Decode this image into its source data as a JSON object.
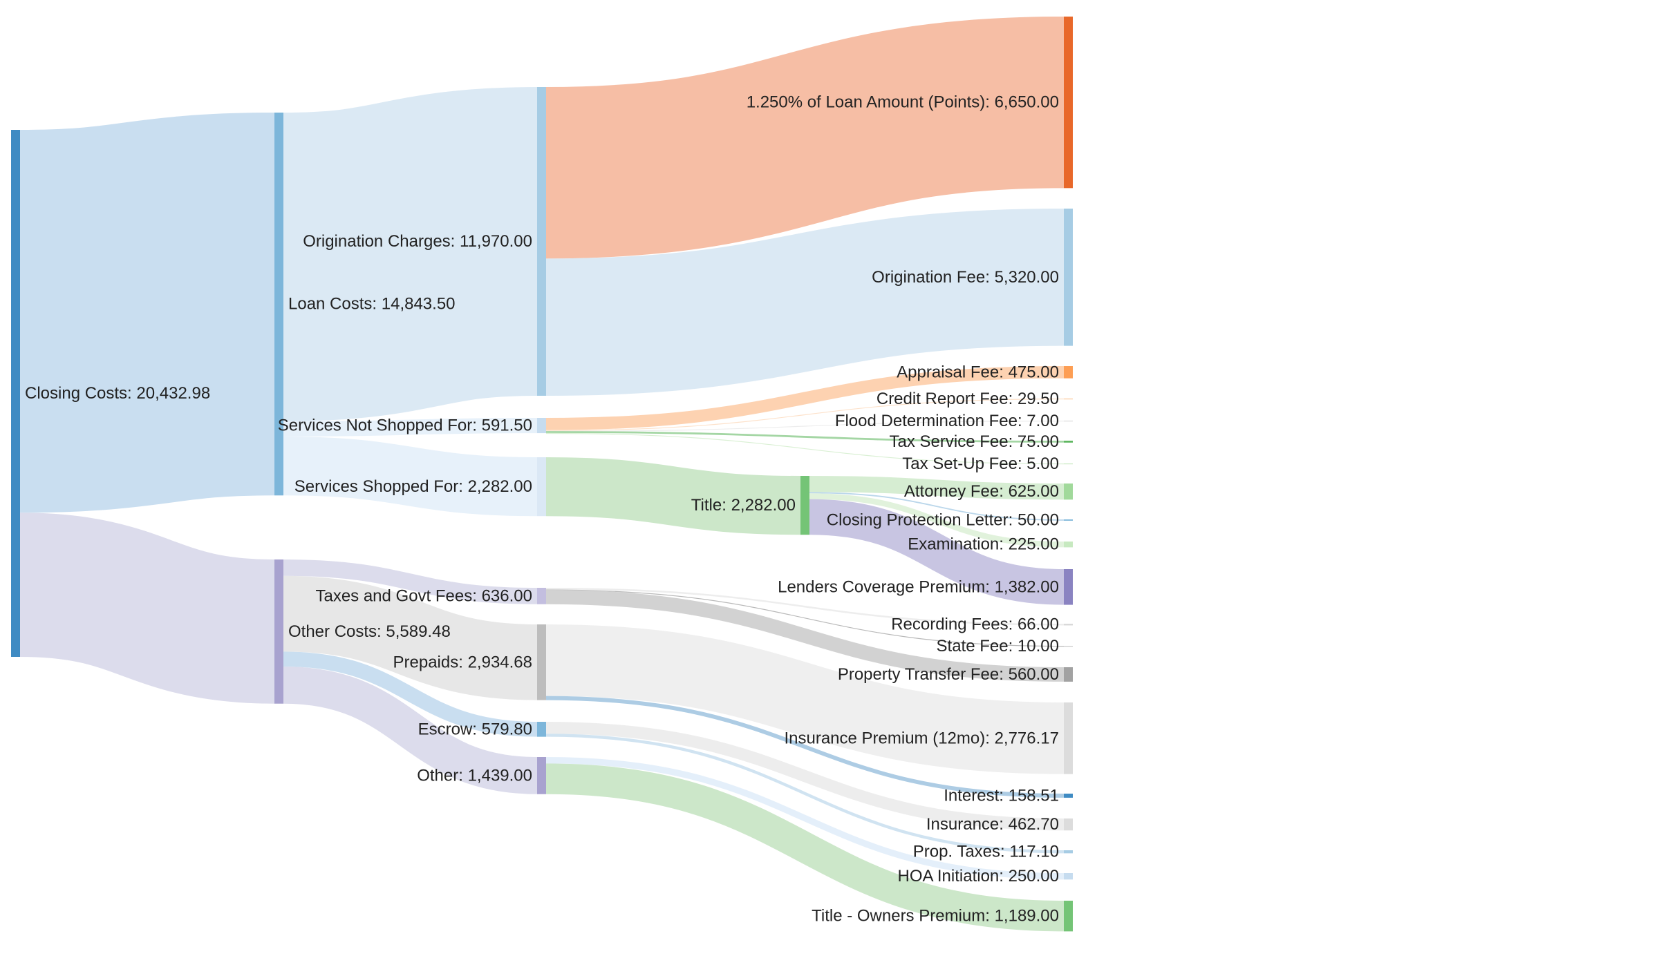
{
  "title": "",
  "colors": {
    "blue_dark": "#3f8bc3",
    "blue_mid": "#7db6da",
    "blue_light": "#a6cce4",
    "blue_pale": "#c6dcef",
    "orange_dark": "#e8682a",
    "orange_light": "#fcc09e",
    "green_dark": "#74c476",
    "green_light": "#a1d99b",
    "green_pale": "#c7e9c0",
    "purple_dark": "#8a83c1",
    "purple_mid": "#a8a2cf",
    "purple_light": "#c3bedf",
    "gray_dark": "#a2a2a2",
    "gray_light": "#d4d4d4",
    "gray_pale": "#e6e6e6"
  },
  "chart_data": {
    "type": "sankey",
    "value_format": "#,##0.00",
    "nodes": [
      {
        "id": "closing",
        "label": "Closing Costs: 20,432.98",
        "value": 20432.98,
        "color": "#3f8bc3"
      },
      {
        "id": "loan",
        "label": "Loan Costs: 14,843.50",
        "value": 14843.5,
        "color": "#7db6da"
      },
      {
        "id": "other_costs",
        "label": "Other Costs: 5,589.48",
        "value": 5589.48,
        "color": "#a8a2cf"
      },
      {
        "id": "origination",
        "label": "Origination Charges: 11,970.00",
        "value": 11970.0,
        "color": "#a6cce4"
      },
      {
        "id": "not_shopped",
        "label": "Services Not Shopped For: 591.50",
        "value": 591.5,
        "color": "#c6dcef"
      },
      {
        "id": "shopped",
        "label": "Services Shopped For: 2,282.00",
        "value": 2282.0,
        "color": "#dbe8f5"
      },
      {
        "id": "taxes",
        "label": "Taxes and Govt Fees: 636.00",
        "value": 636.0,
        "color": "#c3bedf"
      },
      {
        "id": "prepaids",
        "label": "Prepaids: 2,934.68",
        "value": 2934.68,
        "color": "#bdbdbd"
      },
      {
        "id": "escrow",
        "label": "Escrow: 579.80",
        "value": 579.8,
        "color": "#7db6da"
      },
      {
        "id": "other",
        "label": "Other: 1,439.00",
        "value": 1439.0,
        "color": "#a8a2cf"
      },
      {
        "id": "title",
        "label": "Title: 2,282.00",
        "value": 2282.0,
        "color": "#74c476"
      },
      {
        "id": "points",
        "label": "1.250% of Loan Amount (Points): 6,650.00",
        "value": 6650.0,
        "color": "#e8682a"
      },
      {
        "id": "orig_fee",
        "label": "Origination Fee: 5,320.00",
        "value": 5320.0,
        "color": "#a6cce4"
      },
      {
        "id": "appraisal",
        "label": "Appraisal Fee: 475.00",
        "value": 475.0,
        "color": "#fd9e54"
      },
      {
        "id": "credit",
        "label": "Credit Report Fee: 29.50",
        "value": 29.5,
        "color": "#fdc89a"
      },
      {
        "id": "flood",
        "label": "Flood Determination Fee: 7.00",
        "value": 7.0,
        "color": "#d9d9d9"
      },
      {
        "id": "tax_service",
        "label": "Tax Service Fee: 75.00",
        "value": 75.0,
        "color": "#5fb760"
      },
      {
        "id": "tax_setup",
        "label": "Tax Set-Up Fee: 5.00",
        "value": 5.0,
        "color": "#c7e9c0"
      },
      {
        "id": "attorney",
        "label": "Attorney Fee: 625.00",
        "value": 625.0,
        "color": "#a1d99b"
      },
      {
        "id": "cpl",
        "label": "Closing Protection Letter: 50.00",
        "value": 50.0,
        "color": "#7db6da"
      },
      {
        "id": "examination",
        "label": "Examination: 225.00",
        "value": 225.0,
        "color": "#c7e9c0"
      },
      {
        "id": "lenders",
        "label": "Lenders Coverage Premium: 1,382.00",
        "value": 1382.0,
        "color": "#8a83c1"
      },
      {
        "id": "recording",
        "label": "Recording Fees: 66.00",
        "value": 66.0,
        "color": "#d9d9d9"
      },
      {
        "id": "state",
        "label": "State Fee: 10.00",
        "value": 10.0,
        "color": "#c8c8c8"
      },
      {
        "id": "transfer",
        "label": "Property Transfer Fee: 560.00",
        "value": 560.0,
        "color": "#a2a2a2"
      },
      {
        "id": "insurance_prem",
        "label": "Insurance Premium (12mo): 2,776.17",
        "value": 2776.17,
        "color": "#dcdcdc"
      },
      {
        "id": "interest",
        "label": "Interest: 158.51",
        "value": 158.51,
        "color": "#3f8bc3"
      },
      {
        "id": "insurance",
        "label": "Insurance: 462.70",
        "value": 462.7,
        "color": "#dcdcdc"
      },
      {
        "id": "prop_taxes",
        "label": "Prop. Taxes: 117.10",
        "value": 117.1,
        "color": "#a6cce4"
      },
      {
        "id": "hoa",
        "label": "HOA Initiation: 250.00",
        "value": 250.0,
        "color": "#c6dcef"
      },
      {
        "id": "owners",
        "label": "Title - Owners Premium: 1,189.00",
        "value": 1189.0,
        "color": "#74c476"
      }
    ],
    "links": [
      {
        "source": "closing",
        "target": "loan",
        "value": 14843.5,
        "color": "#c6dcef"
      },
      {
        "source": "closing",
        "target": "other_costs",
        "value": 5589.48,
        "color": "#dadaeb"
      },
      {
        "source": "loan",
        "target": "origination",
        "value": 11970.0,
        "color": "#d9e8f3"
      },
      {
        "source": "loan",
        "target": "not_shopped",
        "value": 591.5,
        "color": "#e6f0fa"
      },
      {
        "source": "loan",
        "target": "shopped",
        "value": 2282.0,
        "color": "#e6f0fa"
      },
      {
        "source": "other_costs",
        "target": "taxes",
        "value": 636.0,
        "color": "#dadaeb"
      },
      {
        "source": "other_costs",
        "target": "prepaids",
        "value": 2934.68,
        "color": "#e6e6e6"
      },
      {
        "source": "other_costs",
        "target": "escrow",
        "value": 579.8,
        "color": "#c6dcef"
      },
      {
        "source": "other_costs",
        "target": "other",
        "value": 1439.0,
        "color": "#dadaeb"
      },
      {
        "source": "origination",
        "target": "points",
        "value": 6650.0,
        "color": "#f5bba0"
      },
      {
        "source": "origination",
        "target": "orig_fee",
        "value": 5320.0,
        "color": "#d9e8f3"
      },
      {
        "source": "not_shopped",
        "target": "appraisal",
        "value": 475.0,
        "color": "#fdd0ad"
      },
      {
        "source": "not_shopped",
        "target": "credit",
        "value": 29.5,
        "color": "#fde0c8"
      },
      {
        "source": "not_shopped",
        "target": "flood",
        "value": 7.0,
        "color": "#ececec"
      },
      {
        "source": "not_shopped",
        "target": "tax_service",
        "value": 75.0,
        "color": "#9fd49f"
      },
      {
        "source": "not_shopped",
        "target": "tax_setup",
        "value": 5.0,
        "color": "#d8efd2"
      },
      {
        "source": "shopped",
        "target": "title",
        "value": 2282.0,
        "color": "#c9e6c6"
      },
      {
        "source": "title",
        "target": "attorney",
        "value": 625.0,
        "color": "#d4ecd0"
      },
      {
        "source": "title",
        "target": "cpl",
        "value": 50.0,
        "color": "#b7d5ea"
      },
      {
        "source": "title",
        "target": "examination",
        "value": 225.0,
        "color": "#dff1da"
      },
      {
        "source": "title",
        "target": "lenders",
        "value": 1382.0,
        "color": "#c5c2e0"
      },
      {
        "source": "taxes",
        "target": "recording",
        "value": 66.0,
        "color": "#ececec"
      },
      {
        "source": "taxes",
        "target": "state",
        "value": 10.0,
        "color": "#b5b5b5"
      },
      {
        "source": "taxes",
        "target": "transfer",
        "value": 560.0,
        "color": "#d0d0d0"
      },
      {
        "source": "prepaids",
        "target": "insurance_prem",
        "value": 2776.17,
        "color": "#eeeeee"
      },
      {
        "source": "prepaids",
        "target": "interest",
        "value": 158.51,
        "color": "#a9c9e3"
      },
      {
        "source": "escrow",
        "target": "insurance",
        "value": 462.7,
        "color": "#ececec"
      },
      {
        "source": "escrow",
        "target": "prop_taxes",
        "value": 117.1,
        "color": "#cde2f0"
      },
      {
        "source": "other",
        "target": "hoa",
        "value": 250.0,
        "color": "#e3eefa"
      },
      {
        "source": "other",
        "target": "owners",
        "value": 1189.0,
        "color": "#c9e6c6"
      }
    ]
  }
}
